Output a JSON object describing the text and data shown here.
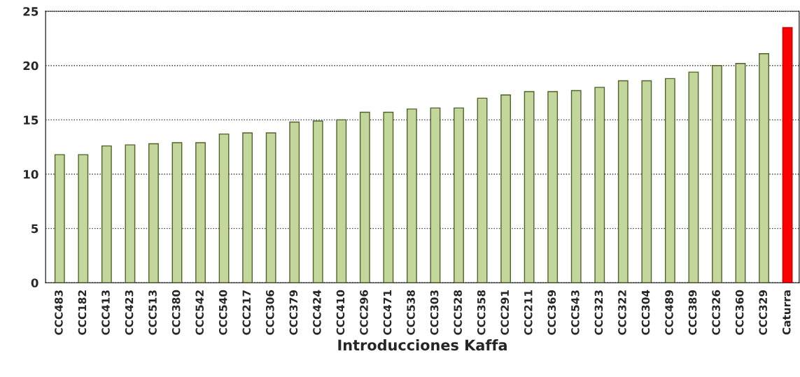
{
  "chart_data": {
    "type": "bar",
    "xlabel": "Introducciones Kaffa",
    "categories": [
      "CCC483",
      "CCC182",
      "CCC413",
      "CCC423",
      "CCC513",
      "CCC380",
      "CCC542",
      "CCC540",
      "CCC217",
      "CCC306",
      "CCC379",
      "CCC424",
      "CCC410",
      "CCC296",
      "CCC471",
      "CCC538",
      "CCC303",
      "CCC528",
      "CCC358",
      "CCC291",
      "CCC211",
      "CCC369",
      "CCC543",
      "CCC323",
      "CCC322",
      "CCC304",
      "CCC489",
      "CCC389",
      "CCC326",
      "CCC360",
      "CCC329",
      "Caturra"
    ],
    "values": [
      11.8,
      11.8,
      12.6,
      12.7,
      12.8,
      12.9,
      12.9,
      13.7,
      13.8,
      13.8,
      14.8,
      14.9,
      15.0,
      15.7,
      15.7,
      16.0,
      16.1,
      16.1,
      17.0,
      17.3,
      17.6,
      17.6,
      17.7,
      18.0,
      18.6,
      18.6,
      18.8,
      19.4,
      20.0,
      20.2,
      21.1,
      23.5
    ],
    "colors": [
      "#c3d69b",
      "#c3d69b",
      "#c3d69b",
      "#c3d69b",
      "#c3d69b",
      "#c3d69b",
      "#c3d69b",
      "#c3d69b",
      "#c3d69b",
      "#c3d69b",
      "#c3d69b",
      "#c3d69b",
      "#c3d69b",
      "#c3d69b",
      "#c3d69b",
      "#c3d69b",
      "#c3d69b",
      "#c3d69b",
      "#c3d69b",
      "#c3d69b",
      "#c3d69b",
      "#c3d69b",
      "#c3d69b",
      "#c3d69b",
      "#c3d69b",
      "#c3d69b",
      "#c3d69b",
      "#c3d69b",
      "#c3d69b",
      "#c3d69b",
      "#c3d69b",
      "#ff0000"
    ],
    "ylim": [
      0,
      25
    ],
    "yticks": [
      0,
      5,
      10,
      15,
      20,
      25
    ],
    "grid": "y",
    "legend": false
  }
}
